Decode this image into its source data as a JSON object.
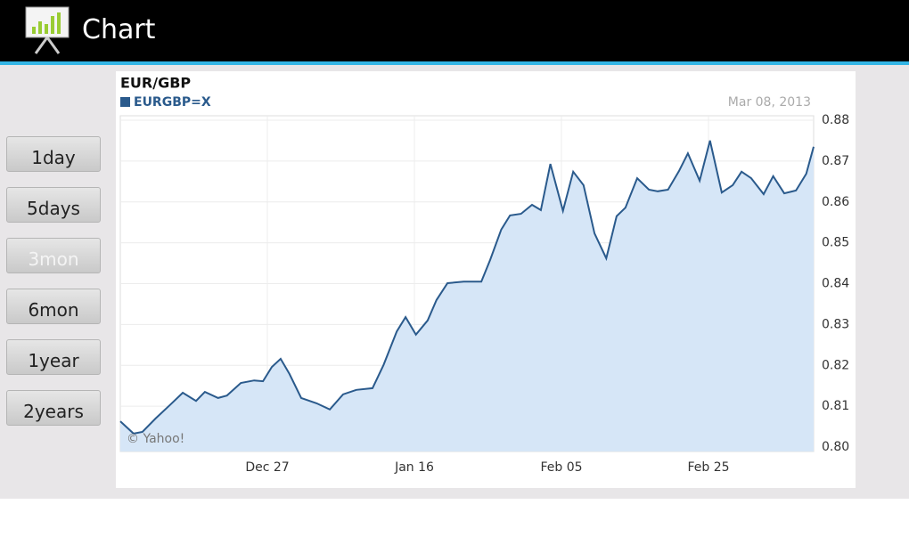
{
  "app_bar": {
    "title": "Chart"
  },
  "buttons": [
    {
      "label": "1day",
      "enabled": true
    },
    {
      "label": "5days",
      "enabled": true
    },
    {
      "label": "3mon",
      "enabled": false
    },
    {
      "label": "6mon",
      "enabled": true
    },
    {
      "label": "1year",
      "enabled": true
    },
    {
      "label": "2years",
      "enabled": true
    }
  ],
  "chart_data": {
    "type": "area",
    "title": "EUR/GBP",
    "date": "Mar 08, 2013",
    "credit": "© Yahoo!",
    "series": [
      {
        "name": "EURGBP=X",
        "color": "#2a5a8c",
        "fill": "#d6e6f7",
        "x": [
          0,
          1.8,
          3.0,
          4.8,
          6.7,
          8.5,
          10.3,
          11.5,
          13.3,
          14.5,
          16.4,
          18.2,
          19.4,
          20.6,
          21.8,
          23.0,
          24.6,
          26.7,
          28.5,
          30.3,
          32.1,
          34.3,
          35.8,
          37.6,
          38.8,
          40.2,
          41.8,
          43.0,
          44.5,
          46.7,
          49.1,
          50.3,
          51.8,
          53.0,
          54.5,
          56.0,
          57.2,
          58.5,
          60.2,
          61.6,
          63.0,
          64.5,
          66.1,
          67.5,
          68.7,
          70.3,
          71.9,
          73.1,
          74.5,
          76.0,
          77.2,
          78.8,
          80.2,
          81.8,
          83.3,
          84.5,
          85.8,
          87.5,
          88.8,
          90.3,
          91.9,
          93.3,
          94.3
        ],
        "values": [
          0.8063,
          0.8033,
          0.8037,
          0.807,
          0.8102,
          0.8133,
          0.8113,
          0.8135,
          0.812,
          0.8126,
          0.8157,
          0.8163,
          0.8161,
          0.8196,
          0.8216,
          0.8179,
          0.812,
          0.8107,
          0.8092,
          0.8129,
          0.814,
          0.8144,
          0.8201,
          0.8283,
          0.8318,
          0.8275,
          0.831,
          0.836,
          0.8401,
          0.8405,
          0.8405,
          0.8458,
          0.8532,
          0.8567,
          0.8571,
          0.8593,
          0.858,
          0.8693,
          0.8578,
          0.8674,
          0.8641,
          0.8523,
          0.8462,
          0.8565,
          0.8586,
          0.8658,
          0.863,
          0.8626,
          0.863,
          0.8676,
          0.8719,
          0.8652,
          0.875,
          0.8623,
          0.8641,
          0.8674,
          0.8658,
          0.8619,
          0.8663,
          0.8621,
          0.8628,
          0.8669,
          0.8735
        ]
      }
    ],
    "xlim": [
      0,
      94.3
    ],
    "xticks": [
      {
        "value": 20,
        "label": "Dec 27"
      },
      {
        "value": 40,
        "label": "Jan 16"
      },
      {
        "value": 60,
        "label": "Feb 05"
      },
      {
        "value": 80,
        "label": "Feb 25"
      }
    ],
    "ylim": [
      0.8,
      0.88
    ],
    "yticks": [
      {
        "value": 0.8,
        "label": "0.80"
      },
      0.81,
      0.82,
      0.83,
      0.84,
      0.85,
      0.86,
      0.87,
      0.88
    ],
    "grid": true
  }
}
